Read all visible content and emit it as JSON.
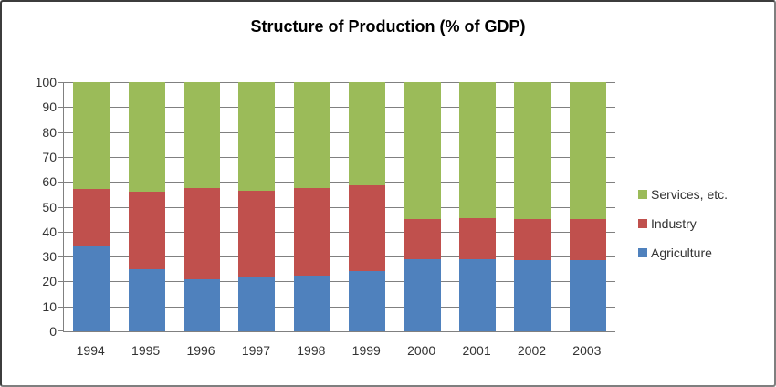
{
  "frame": {
    "background": "#FFFFFF",
    "border_dark": "#3C3C3C",
    "border_light": "#7F7F7F"
  },
  "chart_data": {
    "type": "bar",
    "stacked": true,
    "title": "Structure of Production (% of GDP)",
    "categories": [
      "1994",
      "1995",
      "1996",
      "1997",
      "1998",
      "1999",
      "2000",
      "2001",
      "2002",
      "2003"
    ],
    "series": [
      {
        "name": "Agriculture",
        "color": "#4F81BD",
        "values": [
          34.5,
          25.0,
          21.0,
          22.0,
          22.5,
          24.0,
          29.0,
          29.0,
          28.5,
          28.5
        ]
      },
      {
        "name": "Industry",
        "color": "#C0504D",
        "values": [
          22.5,
          31.0,
          36.5,
          34.5,
          35.0,
          34.5,
          16.0,
          16.5,
          16.5,
          16.5
        ]
      },
      {
        "name": "Services, etc.",
        "color": "#9BBB59",
        "values": [
          43.0,
          44.0,
          42.5,
          43.5,
          42.5,
          41.5,
          55.0,
          54.5,
          55.0,
          55.0
        ]
      }
    ],
    "xlabel": "",
    "ylabel": "",
    "ylim": [
      0,
      100
    ],
    "yticks": [
      0,
      10,
      20,
      30,
      40,
      50,
      60,
      70,
      80,
      90,
      100
    ],
    "grid": true,
    "gridline_color": "#808080",
    "axis_line_color": "#808080",
    "axis_text_color": "#333333",
    "title_color": "#000000",
    "legend_position": "right",
    "legend_items": [
      {
        "label": "Services, etc.",
        "color": "#9BBB59"
      },
      {
        "label": "Industry",
        "color": "#C0504D"
      },
      {
        "label": "Agriculture",
        "color": "#4F81BD"
      }
    ]
  }
}
